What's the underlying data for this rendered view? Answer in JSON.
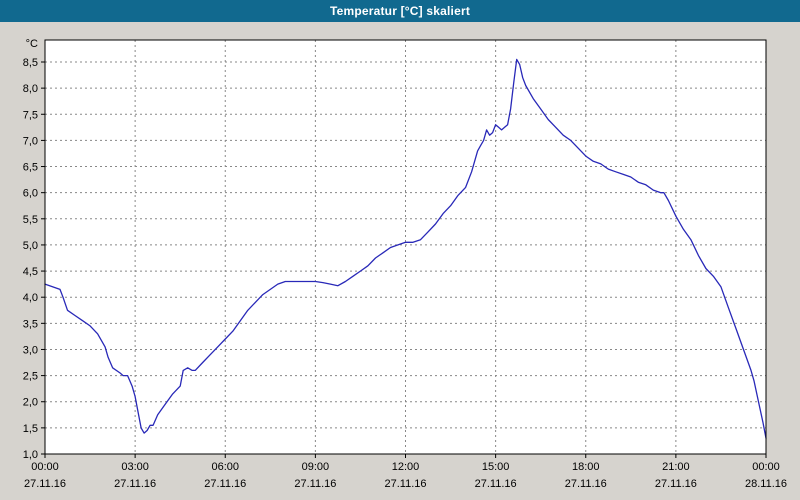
{
  "window": {
    "title": "Temperatur [°C] skaliert"
  },
  "colors": {
    "title_bar": "#11698f",
    "title_text": "#ffffff",
    "background": "#d6d3ce",
    "plot_background": "#ffffff",
    "grid": "#888888",
    "line": "#2929b8",
    "axis_text": "#000000",
    "border": "#000000"
  },
  "chart_data": {
    "type": "line",
    "title": "Temperatur [°C] skaliert",
    "xlabel": "",
    "ylabel": "°C",
    "ylim": [
      1.0,
      8.5
    ],
    "y_tick_step": 0.5,
    "y_tick_labels": [
      "1,0",
      "1,5",
      "2,0",
      "2,5",
      "3,0",
      "3,5",
      "4,0",
      "4,5",
      "5,0",
      "5,5",
      "6,0",
      "6,5",
      "7,0",
      "7,5",
      "8,0",
      "8,5"
    ],
    "x_ticks": [
      {
        "hour": 0,
        "time": "00:00",
        "date": "27.11.16"
      },
      {
        "hour": 3,
        "time": "03:00",
        "date": "27.11.16"
      },
      {
        "hour": 6,
        "time": "06:00",
        "date": "27.11.16"
      },
      {
        "hour": 9,
        "time": "09:00",
        "date": "27.11.16"
      },
      {
        "hour": 12,
        "time": "12:00",
        "date": "27.11.16"
      },
      {
        "hour": 15,
        "time": "15:00",
        "date": "27.11.16"
      },
      {
        "hour": 18,
        "time": "18:00",
        "date": "27.11.16"
      },
      {
        "hour": 21,
        "time": "21:00",
        "date": "27.11.16"
      },
      {
        "hour": 24,
        "time": "00:00",
        "date": "28.11.16"
      }
    ],
    "grid": true,
    "legend": "none",
    "series_name": "Temperatur [°C]",
    "points": [
      [
        0,
        4.25
      ],
      [
        0.25,
        4.2
      ],
      [
        0.5,
        4.15
      ],
      [
        0.6,
        4.0
      ],
      [
        0.75,
        3.75
      ],
      [
        1.0,
        3.65
      ],
      [
        1.25,
        3.55
      ],
      [
        1.5,
        3.45
      ],
      [
        1.75,
        3.3
      ],
      [
        2.0,
        3.05
      ],
      [
        2.1,
        2.85
      ],
      [
        2.25,
        2.65
      ],
      [
        2.5,
        2.55
      ],
      [
        2.6,
        2.5
      ],
      [
        2.75,
        2.5
      ],
      [
        2.9,
        2.3
      ],
      [
        3.0,
        2.1
      ],
      [
        3.1,
        1.8
      ],
      [
        3.2,
        1.5
      ],
      [
        3.3,
        1.4
      ],
      [
        3.4,
        1.45
      ],
      [
        3.5,
        1.55
      ],
      [
        3.6,
        1.55
      ],
      [
        3.75,
        1.75
      ],
      [
        4.0,
        1.95
      ],
      [
        4.25,
        2.15
      ],
      [
        4.5,
        2.3
      ],
      [
        4.6,
        2.6
      ],
      [
        4.75,
        2.65
      ],
      [
        4.9,
        2.6
      ],
      [
        5.0,
        2.6
      ],
      [
        5.25,
        2.75
      ],
      [
        5.5,
        2.9
      ],
      [
        5.75,
        3.05
      ],
      [
        6.0,
        3.2
      ],
      [
        6.25,
        3.35
      ],
      [
        6.5,
        3.55
      ],
      [
        6.75,
        3.75
      ],
      [
        7.0,
        3.9
      ],
      [
        7.25,
        4.05
      ],
      [
        7.5,
        4.15
      ],
      [
        7.75,
        4.25
      ],
      [
        8.0,
        4.3
      ],
      [
        8.25,
        4.3
      ],
      [
        8.5,
        4.3
      ],
      [
        9.0,
        4.3
      ],
      [
        9.25,
        4.28
      ],
      [
        9.5,
        4.25
      ],
      [
        9.75,
        4.22
      ],
      [
        10.0,
        4.3
      ],
      [
        10.25,
        4.4
      ],
      [
        10.5,
        4.5
      ],
      [
        10.75,
        4.6
      ],
      [
        11.0,
        4.75
      ],
      [
        11.25,
        4.85
      ],
      [
        11.5,
        4.95
      ],
      [
        11.75,
        5.0
      ],
      [
        12.0,
        5.05
      ],
      [
        12.25,
        5.05
      ],
      [
        12.5,
        5.1
      ],
      [
        12.75,
        5.25
      ],
      [
        13.0,
        5.4
      ],
      [
        13.25,
        5.6
      ],
      [
        13.5,
        5.75
      ],
      [
        13.75,
        5.95
      ],
      [
        14.0,
        6.1
      ],
      [
        14.2,
        6.4
      ],
      [
        14.4,
        6.8
      ],
      [
        14.5,
        6.9
      ],
      [
        14.6,
        7.0
      ],
      [
        14.7,
        7.2
      ],
      [
        14.8,
        7.1
      ],
      [
        14.9,
        7.15
      ],
      [
        15.0,
        7.3
      ],
      [
        15.1,
        7.25
      ],
      [
        15.2,
        7.2
      ],
      [
        15.3,
        7.25
      ],
      [
        15.4,
        7.3
      ],
      [
        15.5,
        7.6
      ],
      [
        15.6,
        8.1
      ],
      [
        15.7,
        8.55
      ],
      [
        15.8,
        8.45
      ],
      [
        15.9,
        8.2
      ],
      [
        16.0,
        8.05
      ],
      [
        16.25,
        7.8
      ],
      [
        16.5,
        7.6
      ],
      [
        16.75,
        7.4
      ],
      [
        17.0,
        7.25
      ],
      [
        17.25,
        7.1
      ],
      [
        17.5,
        7.0
      ],
      [
        17.75,
        6.85
      ],
      [
        18.0,
        6.7
      ],
      [
        18.25,
        6.6
      ],
      [
        18.5,
        6.55
      ],
      [
        18.75,
        6.45
      ],
      [
        19.0,
        6.4
      ],
      [
        19.25,
        6.35
      ],
      [
        19.5,
        6.3
      ],
      [
        19.75,
        6.2
      ],
      [
        20.0,
        6.15
      ],
      [
        20.25,
        6.05
      ],
      [
        20.5,
        6.0
      ],
      [
        20.6,
        6.0
      ],
      [
        20.75,
        5.85
      ],
      [
        21.0,
        5.55
      ],
      [
        21.25,
        5.3
      ],
      [
        21.5,
        5.1
      ],
      [
        21.75,
        4.8
      ],
      [
        22.0,
        4.55
      ],
      [
        22.25,
        4.4
      ],
      [
        22.5,
        4.2
      ],
      [
        22.75,
        3.8
      ],
      [
        23.0,
        3.4
      ],
      [
        23.25,
        3.0
      ],
      [
        23.5,
        2.6
      ],
      [
        23.6,
        2.4
      ],
      [
        23.75,
        2.0
      ],
      [
        23.9,
        1.6
      ],
      [
        24.0,
        1.3
      ]
    ]
  }
}
